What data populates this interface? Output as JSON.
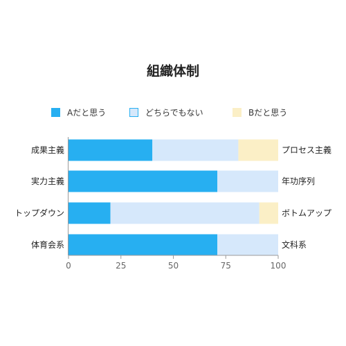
{
  "chart_data": {
    "type": "bar",
    "orientation": "horizontal",
    "stacked": true,
    "title": "組織体制",
    "categories": [
      "成果主義",
      "実力主義",
      "トップダウン",
      "体育会系"
    ],
    "right_labels": [
      "プロセス主義",
      "年功序列",
      "ボトムアップ",
      "文科系"
    ],
    "series": [
      {
        "name": "Aだと思う",
        "values": [
          40,
          71,
          20,
          71
        ],
        "color": "#27aff1"
      },
      {
        "name": "どちらでもない",
        "values": [
          41,
          29,
          71,
          29
        ],
        "color": "#d6e8fb"
      },
      {
        "name": "Bだと思う",
        "values": [
          19,
          0,
          9,
          0
        ],
        "color": "#fbefc6"
      }
    ],
    "xlim": [
      0,
      100
    ],
    "xticks": [
      0,
      25,
      50,
      75,
      100
    ],
    "xlabel": "",
    "ylabel": "",
    "grid": false,
    "legend_position": "top"
  }
}
